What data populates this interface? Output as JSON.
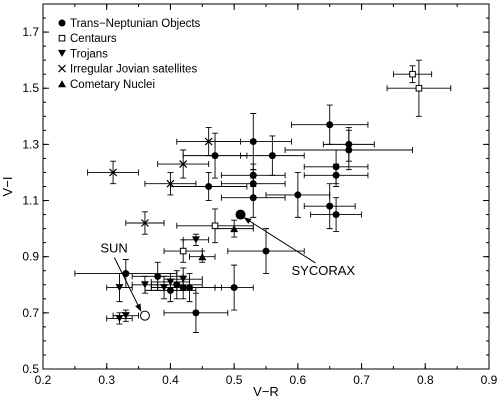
{
  "chart_data": {
    "type": "scatter",
    "title": "",
    "xlabel": "V−R",
    "ylabel": "V−I",
    "xlim": [
      0.2,
      0.9
    ],
    "ylim": [
      0.5,
      1.8
    ],
    "xticks": [
      "0.2",
      "0.3",
      "0.4",
      "0.5",
      "0.6",
      "0.7",
      "0.8",
      "0.9"
    ],
    "yticks": [
      "0.5",
      "0.7",
      "0.9",
      "1.1",
      "1.3",
      "1.5",
      "1.7"
    ],
    "grid": false,
    "legend_position": "top-left",
    "series": [
      {
        "name": "Trans−Neptunian Objects",
        "marker": "filled-circle",
        "points": [
          {
            "x": 0.33,
            "y": 0.84,
            "xerr": 0.08,
            "yerr": 0.05
          },
          {
            "x": 0.38,
            "y": 0.83,
            "xerr": 0.04,
            "yerr": 0.05
          },
          {
            "x": 0.4,
            "y": 0.78,
            "xerr": 0.04,
            "yerr": 0.04
          },
          {
            "x": 0.41,
            "y": 0.8,
            "xerr": 0.04,
            "yerr": 0.05
          },
          {
            "x": 0.42,
            "y": 0.79,
            "xerr": 0.05,
            "yerr": 0.04
          },
          {
            "x": 0.43,
            "y": 0.79,
            "xerr": 0.05,
            "yerr": 0.05
          },
          {
            "x": 0.44,
            "y": 0.7,
            "xerr": 0.05,
            "yerr": 0.07
          },
          {
            "x": 0.5,
            "y": 0.79,
            "xerr": 0.03,
            "yerr": 0.08
          },
          {
            "x": 0.46,
            "y": 1.15,
            "xerr": 0.06,
            "yerr": 0.05
          },
          {
            "x": 0.47,
            "y": 1.26,
            "xerr": 0.05,
            "yerr": 0.08
          },
          {
            "x": 0.53,
            "y": 1.31,
            "xerr": 0.06,
            "yerr": 0.1
          },
          {
            "x": 0.53,
            "y": 1.19,
            "xerr": 0.05,
            "yerr": 0.04
          },
          {
            "x": 0.53,
            "y": 1.16,
            "xerr": 0.05,
            "yerr": 0.05
          },
          {
            "x": 0.53,
            "y": 1.11,
            "xerr": 0.05,
            "yerr": 0.07
          },
          {
            "x": 0.55,
            "y": 0.92,
            "xerr": 0.06,
            "yerr": 0.08
          },
          {
            "x": 0.56,
            "y": 1.26,
            "xerr": 0.05,
            "yerr": 0.07
          },
          {
            "x": 0.6,
            "y": 1.12,
            "xerr": 0.05,
            "yerr": 0.08
          },
          {
            "x": 0.65,
            "y": 1.37,
            "xerr": 0.06,
            "yerr": 0.07
          },
          {
            "x": 0.65,
            "y": 1.08,
            "xerr": 0.04,
            "yerr": 0.08
          },
          {
            "x": 0.66,
            "y": 1.22,
            "xerr": 0.05,
            "yerr": 0.06
          },
          {
            "x": 0.66,
            "y": 1.19,
            "xerr": 0.05,
            "yerr": 0.04
          },
          {
            "x": 0.66,
            "y": 1.05,
            "xerr": 0.04,
            "yerr": 0.06
          },
          {
            "x": 0.68,
            "y": 1.3,
            "xerr": 0.04,
            "yerr": 0.06
          },
          {
            "x": 0.68,
            "y": 1.28,
            "xerr": 0.1,
            "yerr": 0.07
          }
        ]
      },
      {
        "name": "Centaurs",
        "marker": "open-square",
        "points": [
          {
            "x": 0.78,
            "y": 1.55,
            "xerr": 0.03,
            "yerr": 0.03
          },
          {
            "x": 0.79,
            "y": 1.5,
            "xerr": 0.05,
            "yerr": 0.1
          },
          {
            "x": 0.42,
            "y": 0.92,
            "xerr": 0.03,
            "yerr": 0.04
          },
          {
            "x": 0.47,
            "y": 1.01,
            "xerr": 0.06,
            "yerr": 0.06
          }
        ]
      },
      {
        "name": "Trojans",
        "marker": "filled-triangle-down",
        "points": [
          {
            "x": 0.32,
            "y": 0.79,
            "xerr": 0.02,
            "yerr": 0.05
          },
          {
            "x": 0.32,
            "y": 0.68,
            "xerr": 0.02,
            "yerr": 0.02
          },
          {
            "x": 0.33,
            "y": 0.69,
            "xerr": 0.02,
            "yerr": 0.02
          },
          {
            "x": 0.36,
            "y": 0.8,
            "xerr": 0.02,
            "yerr": 0.03
          },
          {
            "x": 0.39,
            "y": 0.79,
            "xerr": 0.02,
            "yerr": 0.04
          },
          {
            "x": 0.4,
            "y": 0.81,
            "xerr": 0.03,
            "yerr": 0.03
          },
          {
            "x": 0.42,
            "y": 0.82,
            "xerr": 0.03,
            "yerr": 0.04
          },
          {
            "x": 0.44,
            "y": 0.96,
            "xerr": 0.02,
            "yerr": 0.02
          }
        ]
      },
      {
        "name": "Irregular Jovian satellites",
        "marker": "cross",
        "points": [
          {
            "x": 0.31,
            "y": 1.2,
            "xerr": 0.04,
            "yerr": 0.04
          },
          {
            "x": 0.36,
            "y": 1.02,
            "xerr": 0.03,
            "yerr": 0.04
          },
          {
            "x": 0.4,
            "y": 1.16,
            "xerr": 0.04,
            "yerr": 0.04
          },
          {
            "x": 0.42,
            "y": 1.23,
            "xerr": 0.04,
            "yerr": 0.05
          },
          {
            "x": 0.46,
            "y": 1.31,
            "xerr": 0.05,
            "yerr": 0.05
          }
        ]
      },
      {
        "name": "Cometary Nuclei",
        "marker": "filled-triangle-up",
        "points": [
          {
            "x": 0.45,
            "y": 0.9,
            "xerr": 0.02,
            "yerr": 0.02
          },
          {
            "x": 0.5,
            "y": 1.0,
            "xerr": 0.03,
            "yerr": 0.03
          }
        ]
      },
      {
        "name": "SYCORAX",
        "marker": "large-filled-circle",
        "points": [
          {
            "x": 0.51,
            "y": 1.05,
            "xerr": 0.0,
            "yerr": 0.0
          }
        ]
      },
      {
        "name": "SUN",
        "marker": "large-open-circle",
        "points": [
          {
            "x": 0.36,
            "y": 0.69,
            "xerr": 0.0,
            "yerr": 0.0
          }
        ]
      }
    ],
    "annotations": [
      {
        "text": "SUN",
        "target_series": "SUN",
        "text_at": [
          0.29,
          0.915
        ],
        "arrow_to": [
          0.354,
          0.705
        ]
      },
      {
        "text": "SYCORAX",
        "target_series": "SYCORAX",
        "text_at": [
          0.59,
          0.835
        ],
        "arrow_to": [
          0.515,
          1.04
        ]
      }
    ]
  }
}
